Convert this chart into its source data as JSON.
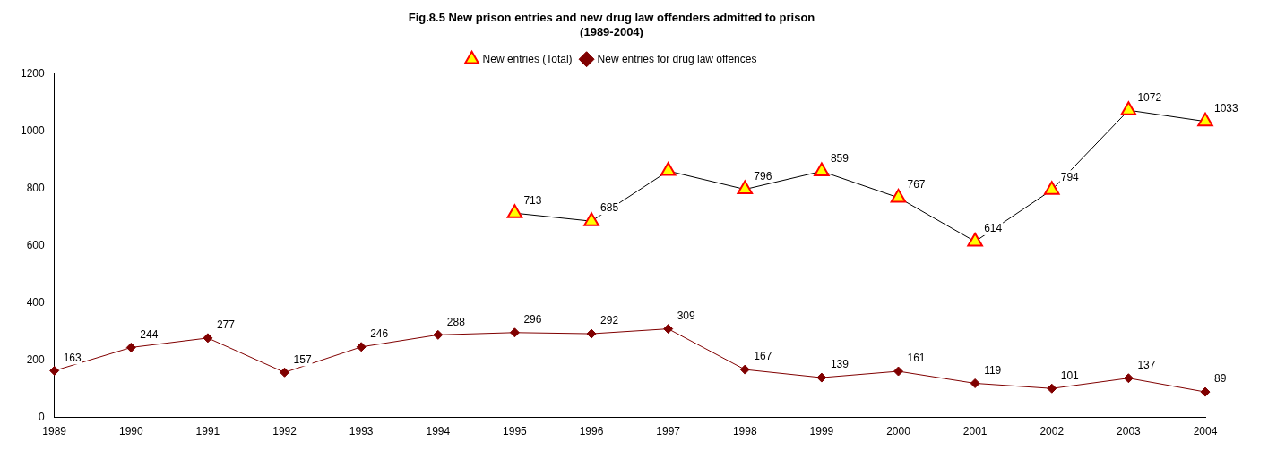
{
  "chart_data": {
    "type": "line",
    "title": "Fig.8.5 New prison entries and new drug law offenders admitted to prison\n(1989-2004)",
    "categories": [
      "1989",
      "1990",
      "1991",
      "1992",
      "1993",
      "1994",
      "1995",
      "1996",
      "1997",
      "1998",
      "1999",
      "2000",
      "2001",
      "2002",
      "2003",
      "2004"
    ],
    "series": [
      {
        "name": "New entries (Total)",
        "color": "#ff0000",
        "marker": "triangle",
        "values": [
          null,
          null,
          null,
          null,
          null,
          null,
          713,
          685,
          860,
          796,
          859,
          767,
          614,
          794,
          1072,
          1033
        ],
        "value_labels": [
          null,
          null,
          null,
          null,
          null,
          null,
          "713",
          "685",
          null,
          "796",
          "859",
          "767",
          "614",
          "794",
          "1072",
          "1033"
        ]
      },
      {
        "name": "New entries for drug law offences",
        "color": "#800000",
        "marker": "diamond",
        "values": [
          163,
          244,
          277,
          157,
          246,
          288,
          296,
          292,
          309,
          167,
          139,
          161,
          119,
          101,
          137,
          89
        ],
        "value_labels": [
          "163",
          "244",
          "277",
          "157",
          "246",
          "288",
          "296",
          "292",
          "309",
          "167",
          "139",
          "161",
          "119",
          "101",
          "137",
          "89"
        ]
      }
    ],
    "ylim": [
      0,
      1200
    ],
    "yticks": [
      0,
      200,
      400,
      600,
      800,
      1000,
      1200
    ],
    "legend": "top",
    "grid": false
  }
}
